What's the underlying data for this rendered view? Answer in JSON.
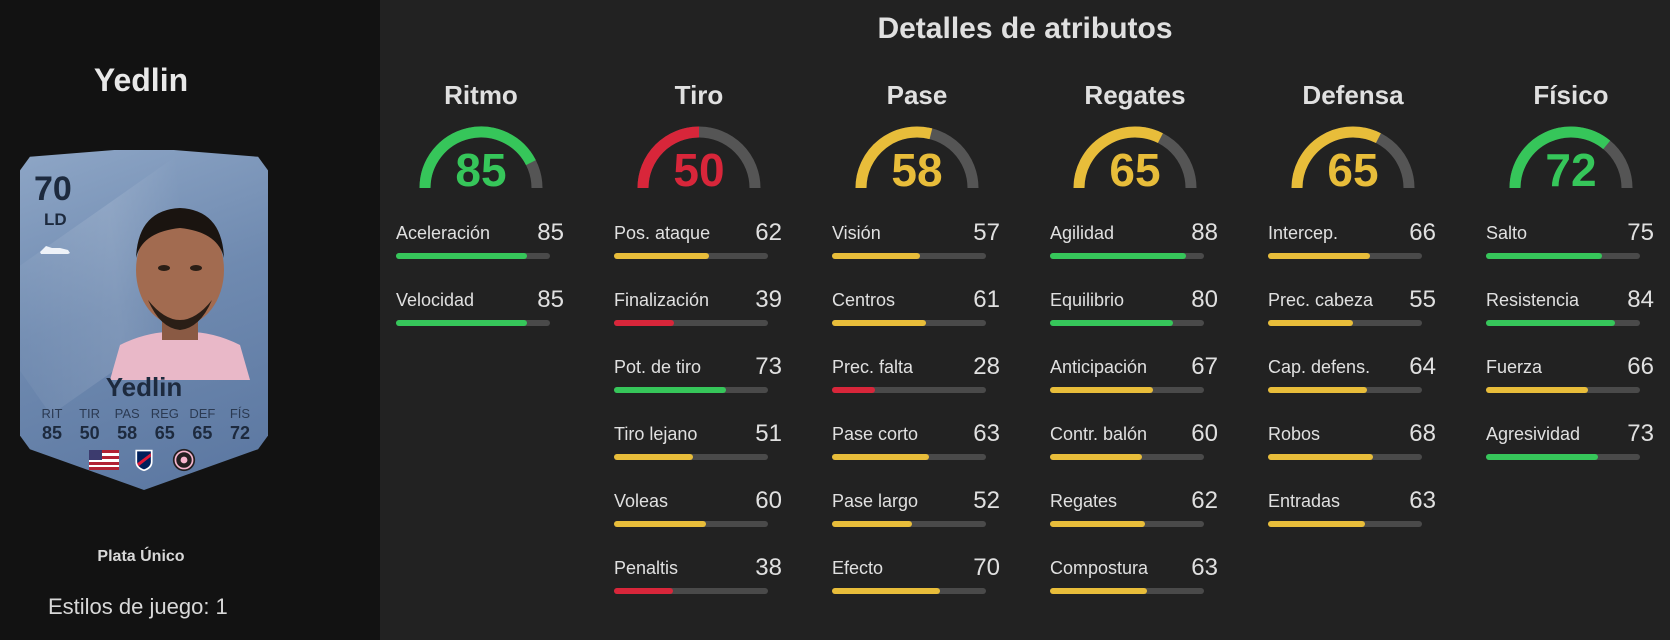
{
  "player": {
    "name": "Yedlin",
    "rating": "70",
    "position": "LD",
    "card_name": "Yedlin",
    "card_stats": [
      {
        "label": "RIT",
        "value": "85"
      },
      {
        "label": "TIR",
        "value": "50"
      },
      {
        "label": "PAS",
        "value": "58"
      },
      {
        "label": "REG",
        "value": "65"
      },
      {
        "label": "DEF",
        "value": "65"
      },
      {
        "label": "FÍS",
        "value": "72"
      }
    ],
    "badges": [
      "usa-flag-icon",
      "mls-league-icon",
      "inter-miami-club-icon"
    ],
    "version": "Plata Único",
    "playstyles": "Estilos de juego: 1"
  },
  "section_title": "Detalles de atributos",
  "colors": {
    "green": "#36c65a",
    "yellow": "#e8bd3a",
    "red": "#d8263a",
    "track": "#4a4a4a"
  },
  "categories": [
    {
      "title": "Ritmo",
      "value": 85,
      "color": "green",
      "stats": [
        {
          "name": "Aceleración",
          "value": 85,
          "color": "green"
        },
        {
          "name": "Velocidad",
          "value": 85,
          "color": "green"
        }
      ]
    },
    {
      "title": "Tiro",
      "value": 50,
      "color": "red",
      "stats": [
        {
          "name": "Pos. ataque",
          "value": 62,
          "color": "yellow"
        },
        {
          "name": "Finalización",
          "value": 39,
          "color": "red"
        },
        {
          "name": "Pot. de tiro",
          "value": 73,
          "color": "green"
        },
        {
          "name": "Tiro lejano",
          "value": 51,
          "color": "yellow"
        },
        {
          "name": "Voleas",
          "value": 60,
          "color": "yellow"
        },
        {
          "name": "Penaltis",
          "value": 38,
          "color": "red"
        }
      ]
    },
    {
      "title": "Pase",
      "value": 58,
      "color": "yellow",
      "stats": [
        {
          "name": "Visión",
          "value": 57,
          "color": "yellow"
        },
        {
          "name": "Centros",
          "value": 61,
          "color": "yellow"
        },
        {
          "name": "Prec. falta",
          "value": 28,
          "color": "red"
        },
        {
          "name": "Pase corto",
          "value": 63,
          "color": "yellow"
        },
        {
          "name": "Pase largo",
          "value": 52,
          "color": "yellow"
        },
        {
          "name": "Efecto",
          "value": 70,
          "color": "yellow"
        }
      ]
    },
    {
      "title": "Regates",
      "value": 65,
      "color": "yellow",
      "stats": [
        {
          "name": "Agilidad",
          "value": 88,
          "color": "green"
        },
        {
          "name": "Equilibrio",
          "value": 80,
          "color": "green"
        },
        {
          "name": "Anticipación",
          "value": 67,
          "color": "yellow"
        },
        {
          "name": "Contr. balón",
          "value": 60,
          "color": "yellow"
        },
        {
          "name": "Regates",
          "value": 62,
          "color": "yellow"
        },
        {
          "name": "Compostura",
          "value": 63,
          "color": "yellow"
        }
      ]
    },
    {
      "title": "Defensa",
      "value": 65,
      "color": "yellow",
      "stats": [
        {
          "name": "Intercep.",
          "value": 66,
          "color": "yellow"
        },
        {
          "name": "Prec. cabeza",
          "value": 55,
          "color": "yellow"
        },
        {
          "name": "Cap. defens.",
          "value": 64,
          "color": "yellow"
        },
        {
          "name": "Robos",
          "value": 68,
          "color": "yellow"
        },
        {
          "name": "Entradas",
          "value": 63,
          "color": "yellow"
        }
      ]
    },
    {
      "title": "Físico",
      "value": 72,
      "color": "green",
      "stats": [
        {
          "name": "Salto",
          "value": 75,
          "color": "green"
        },
        {
          "name": "Resistencia",
          "value": 84,
          "color": "green"
        },
        {
          "name": "Fuerza",
          "value": 66,
          "color": "yellow"
        },
        {
          "name": "Agresividad",
          "value": 73,
          "color": "green"
        }
      ]
    }
  ]
}
